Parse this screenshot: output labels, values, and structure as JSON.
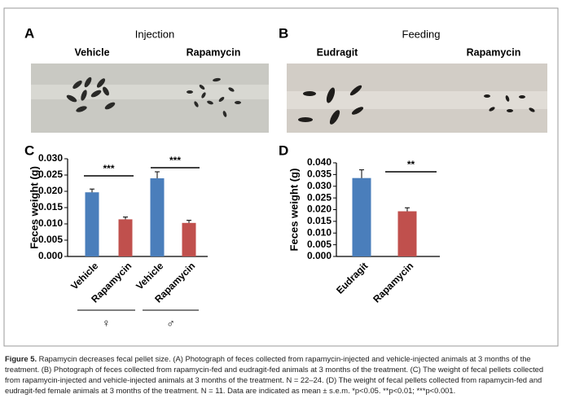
{
  "figure": {
    "panel_a": {
      "letter": "A",
      "heading": "Injection",
      "left": "Vehicle",
      "right": "Rapamycin"
    },
    "panel_b": {
      "letter": "B",
      "heading": "Feeding",
      "left": "Eudragit",
      "right": "Rapamycin"
    }
  },
  "chart_data": [
    {
      "type": "bar",
      "panel": "C",
      "ylabel": "Feces weight (g)",
      "categories": [
        "Vehicle",
        "Rapamycin",
        "Vehicle",
        "Rapamycin"
      ],
      "values": [
        0.0197,
        0.0114,
        0.024,
        0.0103
      ],
      "errors": [
        0.001,
        0.0007,
        0.002,
        0.0008
      ],
      "colors": [
        "#4a7ebb",
        "#c0504d",
        "#4a7ebb",
        "#c0504d"
      ],
      "groups": [
        "♀",
        "♂"
      ],
      "annotations": [
        "***",
        "***"
      ],
      "ylim": [
        0,
        0.03
      ],
      "yticks": [
        {
          "value": 0,
          "label": "0.000"
        },
        {
          "value": 0.005,
          "label": "0.005"
        },
        {
          "value": 0.01,
          "label": "0.010"
        },
        {
          "value": 0.015,
          "label": "0.015"
        },
        {
          "value": 0.02,
          "label": "0.020"
        },
        {
          "value": 0.025,
          "label": "0.025"
        },
        {
          "value": 0.03,
          "label": "0.030"
        }
      ]
    },
    {
      "type": "bar",
      "panel": "D",
      "ylabel": "Feces weight (g)",
      "categories": [
        "Eudragit",
        "Rapamycin"
      ],
      "values": [
        0.0335,
        0.0193
      ],
      "errors": [
        0.0035,
        0.0015
      ],
      "colors": [
        "#4a7ebb",
        "#c0504d"
      ],
      "annotations": [
        "**"
      ],
      "ylim": [
        0,
        0.04
      ],
      "yticks": [
        {
          "value": 0,
          "label": "0.000"
        },
        {
          "value": 0.005,
          "label": "0.005"
        },
        {
          "value": 0.01,
          "label": "0.010"
        },
        {
          "value": 0.015,
          "label": "0.015"
        },
        {
          "value": 0.02,
          "label": "0.020"
        },
        {
          "value": 0.025,
          "label": "0.025"
        },
        {
          "value": 0.03,
          "label": "0.030"
        },
        {
          "value": 0.035,
          "label": "0.035"
        },
        {
          "value": 0.04,
          "label": "0.040"
        }
      ]
    }
  ],
  "caption": {
    "label": "Figure 5.",
    "text": " Rapamycin decreases fecal pellet size. (A) Photograph of feces collected from rapamycin-injected and vehicle-injected animals at 3 months of the treatment. (B) Photograph of feces collected from rapamycin-fed and eudragit-fed animals at 3 months of the treatment. (C) The weight of fecal pellets collected from rapamycin-injected and vehicle-injected animals at 3 months of the treatment. N = 22–24. (D) The weight of fecal pellets collected from rapamycin-fed and eudragit-fed female animals at 3 months of the treatment. N = 11. Data are indicated as mean ± s.e.m. *p<0.05. **p<0.01; ***p<0.001."
  }
}
